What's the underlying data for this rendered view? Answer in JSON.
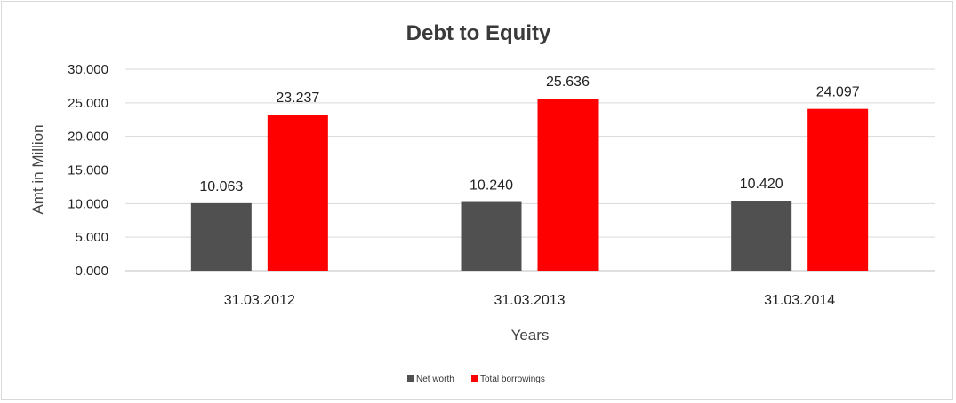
{
  "chart_data": {
    "type": "bar",
    "title": "Debt to Equity",
    "xlabel": "Years",
    "ylabel": "Amt in Million",
    "categories": [
      "31.03.2012",
      "31.03.2013",
      "31.03.2014"
    ],
    "series": [
      {
        "name": "Net worth",
        "values": [
          10.063,
          10.24,
          10.42
        ],
        "labels": [
          "10.063",
          "10.240",
          "10.420"
        ],
        "color": "#505050"
      },
      {
        "name": "Total borrowings",
        "values": [
          23.237,
          25.636,
          24.097
        ],
        "labels": [
          "23.237",
          "25.636",
          "24.097"
        ],
        "color": "#ff0000"
      }
    ],
    "ylim": [
      0,
      30
    ],
    "yticks": [
      0,
      5,
      10,
      15,
      20,
      25,
      30
    ],
    "ytick_labels": [
      "0.000",
      "5.000",
      "10.000",
      "15.000",
      "20.000",
      "25.000",
      "30.000"
    ],
    "grid": true,
    "legend_position": "bottom"
  }
}
